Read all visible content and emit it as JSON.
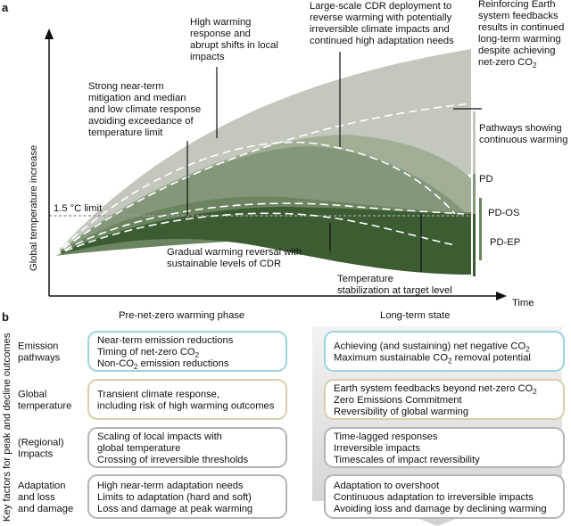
{
  "panel_a": {
    "label": "a",
    "y_axis": "Global temperature increase",
    "x_axis": "Time",
    "phase_left": "Pre-net-zero warming phase",
    "phase_right": "Long-term state",
    "limit_label": "1.5 °C limit",
    "annotations": {
      "high_warming": [
        "High warming",
        "response and",
        "abrupt shifts in local",
        "impacts"
      ],
      "large_cdr": [
        "Large-scale CDR deployment to",
        "reverse warming with potentially",
        "irreversible climate impacts and",
        "continued high adaptation needs"
      ],
      "reinforcing": [
        "Reinforcing Earth",
        "system feedbacks",
        "results in continued",
        "long-term warming",
        "despite achieving"
      ],
      "reinforcing_last": "net-zero CO",
      "reinforcing_sub": "2",
      "strong_mitigation": [
        "Strong near-term",
        "mitigation and median",
        "and low climate response",
        "avoiding exceedance of",
        "temperature limit"
      ],
      "gradual_reversal": [
        "Gradual warming reversal with",
        "sustainable levels of CDR"
      ],
      "stabilization": [
        "Temperature",
        "stabilization at target level"
      ],
      "continuous": [
        "Pathways showing",
        "continuous warming"
      ]
    },
    "bracket_labels": {
      "pd": "PD",
      "pd_os": "PD-OS",
      "pd_ep": "PD-EP"
    },
    "colors": {
      "band_light": "#c3c7bd",
      "band_mid1": "#8e9f83",
      "band_mid2": "#7b9170",
      "band_dark": "#3c5c32"
    }
  },
  "panel_b": {
    "label": "b",
    "side_label": "Key factors for peak and decline outcomes",
    "rows": [
      {
        "name": "Emission pathways",
        "name_lines": [
          "Emission",
          "pathways"
        ],
        "color": "#9ed3dd",
        "left_lines": [
          "Near-term emission reductions",
          "Timing of net-zero CO|2",
          "Non-CO|2| emission reductions"
        ],
        "right_lines": [
          "Achieving (and sustaining) net negative CO|2",
          "Maximum sustainable CO|2| removal potential"
        ]
      },
      {
        "name": "Global temperature",
        "name_lines": [
          "Global",
          "temperature"
        ],
        "color": "#d8cfa9",
        "left_lines": [
          "Transient climate response,",
          "including risk of high warming outcomes"
        ],
        "right_lines": [
          "Earth system feedbacks beyond net-zero CO|2",
          "Zero Emissions Commitment",
          "Reversibility of global warming"
        ]
      },
      {
        "name": "(Regional) Impacts",
        "name_lines": [
          "(Regional)",
          "Impacts"
        ],
        "color": "#b5b5b5",
        "left_lines": [
          "Scaling of local impacts with",
          "global temperature",
          "Crossing of irreversible thresholds"
        ],
        "right_lines": [
          "Time-lagged responses",
          "Irreversible impacts",
          "Timescales of impact reversibility"
        ]
      },
      {
        "name": "Adaptation and loss and damage",
        "name_lines": [
          "Adaptation",
          "and loss",
          "and damage"
        ],
        "color": "#b5b5b5",
        "left_lines": [
          "High near-term adaptation needs",
          "Limits to adaptation (hard and soft)",
          "Loss and damage at peak warming"
        ],
        "right_lines": [
          "Adaptation to overshoot",
          "Continuous adaptation to irreversible impacts",
          "Avoiding loss and damage by declining warming"
        ]
      }
    ]
  }
}
